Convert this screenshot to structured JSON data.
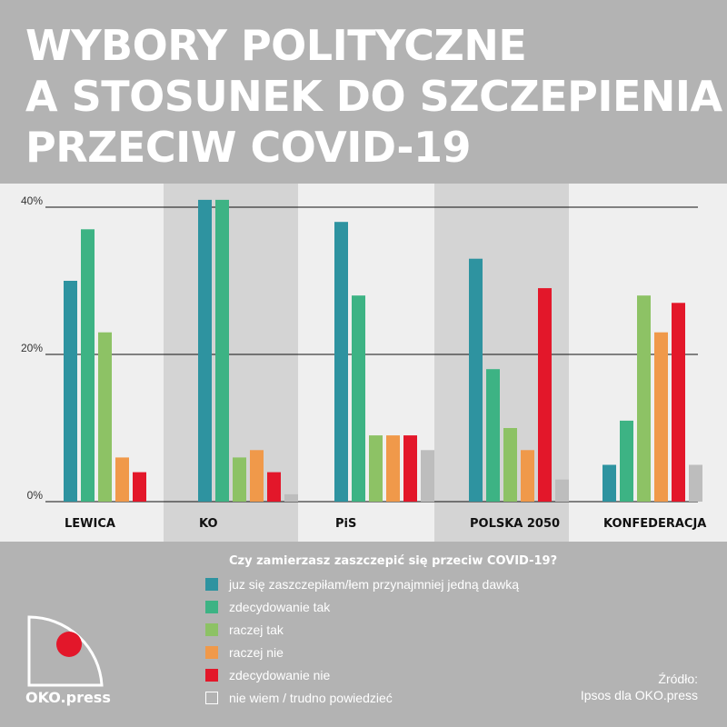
{
  "title_lines": [
    "WYBORY POLITYCZNE",
    "A STOSUNEK DO SZCZEPIENIA",
    "PRZECIW COVID-19"
  ],
  "legend_title": "Czy zamierzasz zaszczepić się przeciw COVID-19?",
  "source_lines": [
    "Źródło:",
    "Ipsos dla OKO.press"
  ],
  "logo_text": "OKO.press",
  "colors": {
    "background": "#b3b3b3",
    "plot_bg": "#efefef",
    "band_bg": "#d4d4d4",
    "logo_dot": "#e3172a"
  },
  "chart_data": {
    "type": "bar",
    "categories": [
      "LEWICA",
      "KO",
      "PiS",
      "POLSKA 2050",
      "KONFEDERACJA"
    ],
    "series": [
      {
        "name": "juz się zaszczepiłam/łem przynajmniej jedną dawką",
        "color": "#2e93a0",
        "values": [
          30,
          41,
          38,
          33,
          5
        ]
      },
      {
        "name": "zdecydowanie tak",
        "color": "#3db384",
        "values": [
          37,
          41,
          28,
          18,
          11
        ]
      },
      {
        "name": "raczej tak",
        "color": "#8dc265",
        "values": [
          23,
          6,
          9,
          10,
          28
        ]
      },
      {
        "name": "raczej nie",
        "color": "#f0994a",
        "values": [
          6,
          7,
          9,
          7,
          23
        ]
      },
      {
        "name": "zdecydowanie nie",
        "color": "#e3172a",
        "values": [
          4,
          4,
          9,
          29,
          27
        ]
      },
      {
        "name": "nie wiem / trudno powiedzieć",
        "color": "#bdbdbd",
        "values": [
          0,
          1,
          7,
          3,
          5
        ]
      }
    ],
    "yticks": [
      "0%",
      "20%",
      "40%"
    ],
    "ytick_values": [
      0,
      20,
      40
    ],
    "ylim": [
      0,
      40
    ],
    "grid": true,
    "legend_position": "bottom"
  }
}
